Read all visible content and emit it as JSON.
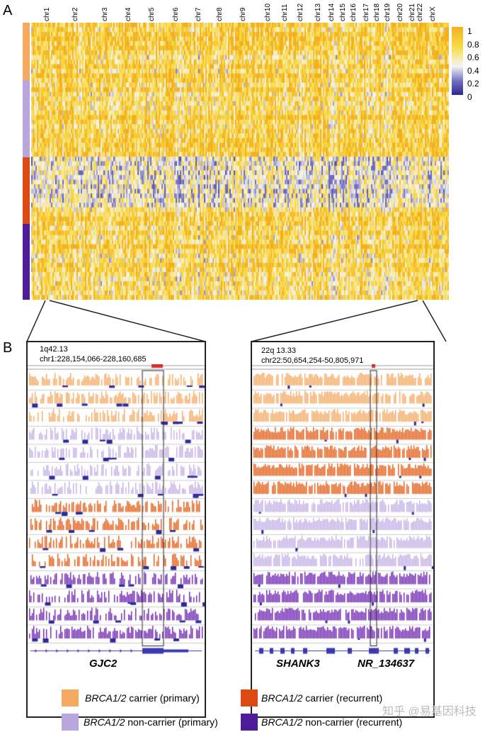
{
  "panels": {
    "a": "A",
    "b": "B"
  },
  "chart_data": {
    "type": "heatmap",
    "columns_label_ticks": [
      "chr1",
      "chr2",
      "chr3",
      "chr4",
      "chr5",
      "chr6",
      "chr7",
      "chr8",
      "chr9",
      "chr10",
      "chr11",
      "chr12",
      "chr13",
      "chr14",
      "chr15",
      "chr16",
      "chr17",
      "chr18",
      "chr19",
      "chr20",
      "chr21",
      "chr22",
      "chrX"
    ],
    "row_groups": [
      {
        "name": "BRCA1/2 carrier (primary)",
        "color": "#f5a95f"
      },
      {
        "name": "BRCA1/2 non-carrier (primary)",
        "color": "#b9a6dc"
      },
      {
        "name": "BRCA1/2 carrier (recurrent)",
        "color": "#dc4a12"
      },
      {
        "name": "BRCA1/2 non-carrier (recurrent)",
        "color": "#4e1c98"
      }
    ],
    "colorbar": {
      "range": [
        0,
        1
      ],
      "ticks": [
        "1",
        "0.8",
        "0.6",
        "0.4",
        "0.2",
        "0"
      ],
      "colors": [
        "#2b2a8c",
        "#f4f4f4",
        "#f9dc4a",
        "#f2b01e"
      ]
    }
  },
  "tracks": {
    "left": {
      "band": "1q42.13",
      "coords": "chr1:228,154,066-228,160,685",
      "genes": [
        "GJC2"
      ],
      "row_groups": [
        "carrier-primary",
        "carrier-primary",
        "carrier-primary",
        "noncarrier-primary",
        "noncarrier-primary",
        "noncarrier-primary",
        "noncarrier-primary",
        "carrier-recurrent",
        "carrier-recurrent",
        "carrier-recurrent",
        "carrier-recurrent",
        "noncarrier-recurrent",
        "noncarrier-recurrent",
        "noncarrier-recurrent",
        "noncarrier-recurrent"
      ]
    },
    "right": {
      "band": "22q 13.33",
      "coords": "chr22:50,654,254-50,805,971",
      "genes": [
        "SHANK3",
        "NR_134637"
      ],
      "row_groups": [
        "carrier-primary",
        "carrier-primary",
        "carrier-primary",
        "carrier-recurrent",
        "carrier-recurrent",
        "carrier-recurrent",
        "carrier-recurrent",
        "noncarrier-primary",
        "noncarrier-primary",
        "noncarrier-primary",
        "noncarrier-primary",
        "noncarrier-recurrent",
        "noncarrier-recurrent",
        "noncarrier-recurrent",
        "noncarrier-recurrent"
      ]
    }
  },
  "legend": [
    {
      "gene": "BRCA1/2",
      "label": " carrier (primary)",
      "color": "#f5a95f"
    },
    {
      "gene": "BRCA1/2",
      "label": " carrier (recurrent)",
      "color": "#dc4a12"
    },
    {
      "gene": "BRCA1/2",
      "label": " non-carrier (primary)",
      "color": "#b9a6dc"
    },
    {
      "gene": "BRCA1/2",
      "label": " non-carrier (recurrent)",
      "color": "#4e1c98"
    }
  ],
  "watermark": "知乎 @易基因科技"
}
